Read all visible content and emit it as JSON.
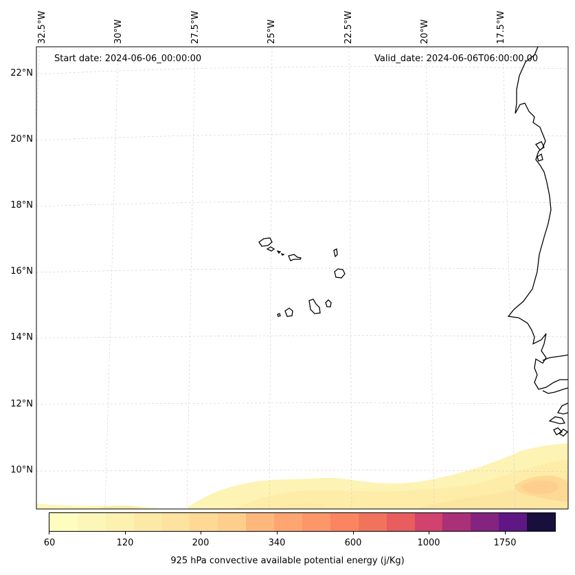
{
  "map": {
    "start_label": "Start date: 2024-06-06_00:00:00",
    "valid_label": "Valid_date: 2024-06-06T06:00:00.00",
    "lon_labels": [
      "32.5°W",
      "30°W",
      "27.5°W",
      "25°W",
      "22.5°W",
      "20°W",
      "17.5°W"
    ],
    "lat_labels": [
      "22°N",
      "20°N",
      "18°N",
      "16°N",
      "14°N",
      "12°N",
      "10°N"
    ],
    "gridlines": "dashed",
    "field_colors": [
      "#fcfdbf",
      "#fcf7b8",
      "#fdf1b0",
      "#fde9a6",
      "#fee29f",
      "#fed995",
      "#fecf8c",
      "#feb87c",
      "#fea572",
      "#fd9668",
      "#fb8560",
      "#f2735c",
      "#e85d5d",
      "#d1426e",
      "#aa3077",
      "#842480",
      "#5f1883",
      "#180f3d"
    ]
  },
  "colorbar": {
    "title": "925 hPa convective available potential energy (j/Kg)",
    "tick_labels": [
      "60",
      "120",
      "200",
      "340",
      "600",
      "1000",
      "1750"
    ],
    "colors": [
      "#fcfdbf",
      "#fcf7b8",
      "#fdf1b0",
      "#fde9a6",
      "#fee29f",
      "#fed995",
      "#fecf8c",
      "#feb87c",
      "#fea572",
      "#fd9668",
      "#fb8560",
      "#f2735c",
      "#e85d5d",
      "#d1426e",
      "#aa3077",
      "#842480",
      "#5f1883",
      "#180f3d"
    ]
  }
}
